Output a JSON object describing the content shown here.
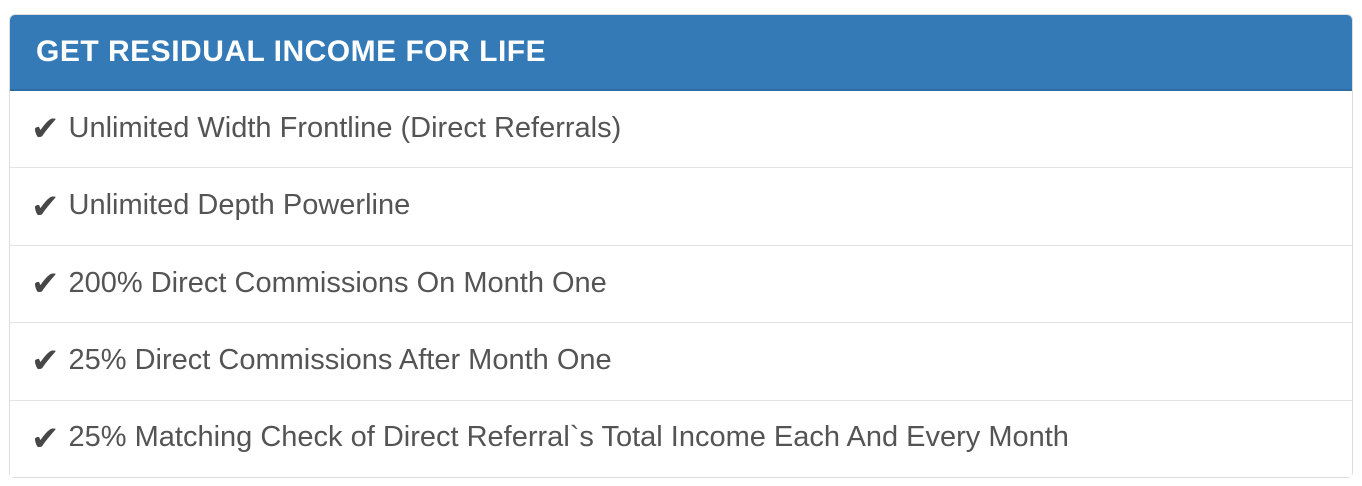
{
  "panel": {
    "header": {
      "title": "GET RESIDUAL INCOME FOR LIFE"
    },
    "check_glyph": "✔",
    "items": [
      {
        "icon": "check-icon",
        "label": "Unlimited Width Frontline (Direct Referrals)"
      },
      {
        "icon": "check-icon",
        "label": "Unlimited Depth Powerline"
      },
      {
        "icon": "check-icon",
        "label": "200% Direct Commissions On Month One"
      },
      {
        "icon": "check-icon",
        "label": "25% Direct Commissions After Month One"
      },
      {
        "icon": "check-icon",
        "label": "25% Matching Check of Direct Referral`s Total Income Each And Every Month"
      }
    ],
    "colors": {
      "header_bg": "#337ab7",
      "header_border_bottom": "#2e6da4",
      "header_text": "#ffffff",
      "panel_border": "#dddddd",
      "row_divider": "#e3e3e3",
      "row_text": "#545454",
      "check_icon": "#474747"
    }
  }
}
